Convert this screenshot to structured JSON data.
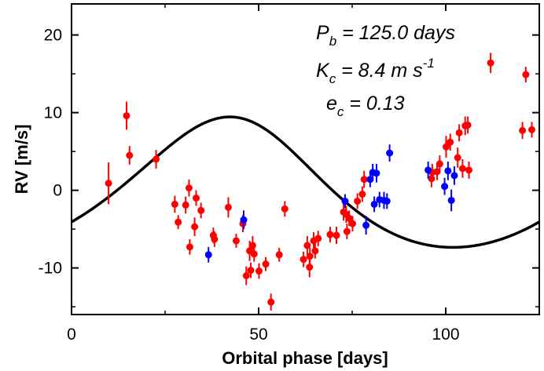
{
  "chart_data": {
    "type": "scatter",
    "xlabel": "Orbital phase [days]",
    "ylabel": "RV [m/s]",
    "xlim": [
      0,
      125
    ],
    "ylim": [
      -16,
      24
    ],
    "x_ticks": [
      0,
      50,
      100
    ],
    "y_ticks": [
      -10,
      0,
      10,
      20
    ],
    "grid": false,
    "legend": "none",
    "colors": {
      "red": "#ff0000",
      "blue": "#0000ff",
      "model": "#000000"
    },
    "annotations": [
      {
        "name": "period",
        "symbol": "P",
        "sub": "b",
        "text": " = 125.0 days"
      },
      {
        "name": "semi-amplitude",
        "symbol": "K",
        "sub": "c",
        "text": " = 8.4 m s",
        "sup": "-1"
      },
      {
        "name": "eccentricity",
        "symbol": "e",
        "sub": "c",
        "text": " = 0.13"
      }
    ],
    "model": {
      "type": "line",
      "amplitude": 8.4,
      "period": 125.0,
      "eccentricity": 0.13,
      "color": "#000000"
    },
    "series": [
      {
        "color": "#ff0000",
        "points": [
          [
            9.9,
            0.9,
            2.7
          ],
          [
            14.7,
            9.6,
            1.8
          ],
          [
            15.5,
            4.5,
            1.2
          ],
          [
            22.6,
            4.0,
            1.2
          ],
          [
            27.6,
            -1.8,
            1.1
          ],
          [
            28.5,
            -4.1,
            0.9
          ],
          [
            30.5,
            -1.9,
            1.1
          ],
          [
            31.4,
            0.3,
            1.1
          ],
          [
            31.6,
            -7.3,
            1.0
          ],
          [
            32.9,
            -4.7,
            1.2
          ],
          [
            33.3,
            -1.0,
            1.0
          ],
          [
            34.6,
            -2.6,
            1.0
          ],
          [
            37.9,
            -5.8,
            1.0
          ],
          [
            38.2,
            -6.3,
            1.0
          ],
          [
            41.9,
            -2.2,
            1.3
          ],
          [
            44.0,
            -6.5,
            0.9
          ],
          [
            45.8,
            -4.3,
            1.1
          ],
          [
            46.7,
            -11.0,
            1.2
          ],
          [
            47.6,
            -7.8,
            1.3
          ],
          [
            47.9,
            -10.3,
            1.0
          ],
          [
            48.4,
            -7.1,
            1.2
          ],
          [
            48.8,
            -8.2,
            1.0
          ],
          [
            50.1,
            -10.4,
            1.0
          ],
          [
            51.9,
            -9.5,
            0.9
          ],
          [
            53.3,
            -14.4,
            1.1
          ],
          [
            55.5,
            -8.3,
            0.9
          ],
          [
            57.0,
            -2.4,
            1.0
          ],
          [
            62.0,
            -8.9,
            1.0
          ],
          [
            63.0,
            -7.1,
            1.2
          ],
          [
            63.6,
            -9.9,
            1.3
          ],
          [
            63.7,
            -8.5,
            1.1
          ],
          [
            64.7,
            -6.5,
            1.1
          ],
          [
            65.1,
            -7.8,
            1.0
          ],
          [
            65.9,
            -6.2,
            1.0
          ],
          [
            69.1,
            -5.7,
            1.0
          ],
          [
            70.8,
            -5.8,
            1.1
          ],
          [
            72.7,
            -2.8,
            1.1
          ],
          [
            73.4,
            -3.1,
            1.1
          ],
          [
            73.6,
            -5.3,
            1.0
          ],
          [
            74.2,
            -3.6,
            1.0
          ],
          [
            75.1,
            -4.3,
            1.0
          ],
          [
            76.4,
            -1.4,
            1.0
          ],
          [
            77.7,
            -0.5,
            1.0
          ],
          [
            78.2,
            1.4,
            1.1
          ],
          [
            96.2,
            1.5,
            1.1
          ],
          [
            96.4,
            2.3,
            1.1
          ],
          [
            97.7,
            2.4,
            1.1
          ],
          [
            98.4,
            3.4,
            1.1
          ],
          [
            100.1,
            5.6,
            1.4
          ],
          [
            101.2,
            6.2,
            1.1
          ],
          [
            103.2,
            4.2,
            1.3
          ],
          [
            103.6,
            7.4,
            1.1
          ],
          [
            104.5,
            2.8,
            1.2
          ],
          [
            105.2,
            8.3,
            1.2
          ],
          [
            105.9,
            8.4,
            1.1
          ],
          [
            106.2,
            2.6,
            1.1
          ],
          [
            112.0,
            16.4,
            1.3
          ],
          [
            120.5,
            7.7,
            1.1
          ],
          [
            121.4,
            14.9,
            1.0
          ],
          [
            123.0,
            7.8,
            1.0
          ]
        ]
      },
      {
        "color": "#0000ff",
        "points": [
          [
            36.6,
            -8.3,
            1.0
          ],
          [
            46.0,
            -3.8,
            1.2
          ],
          [
            73.1,
            -1.4,
            0.9
          ],
          [
            78.7,
            -4.5,
            1.2
          ],
          [
            79.8,
            1.4,
            1.0
          ],
          [
            80.5,
            2.3,
            1.1
          ],
          [
            80.9,
            -1.8,
            1.0
          ],
          [
            81.5,
            2.2,
            1.2
          ],
          [
            82.3,
            -1.2,
            1.0
          ],
          [
            83.5,
            -1.3,
            1.1
          ],
          [
            84.3,
            -1.4,
            1.0
          ],
          [
            85.0,
            4.8,
            1.1
          ],
          [
            95.3,
            2.6,
            1.1
          ],
          [
            99.7,
            0.5,
            1.1
          ],
          [
            100.6,
            2.5,
            1.2
          ],
          [
            101.5,
            -1.3,
            1.4
          ],
          [
            102.3,
            1.9,
            1.2
          ]
        ]
      }
    ]
  }
}
